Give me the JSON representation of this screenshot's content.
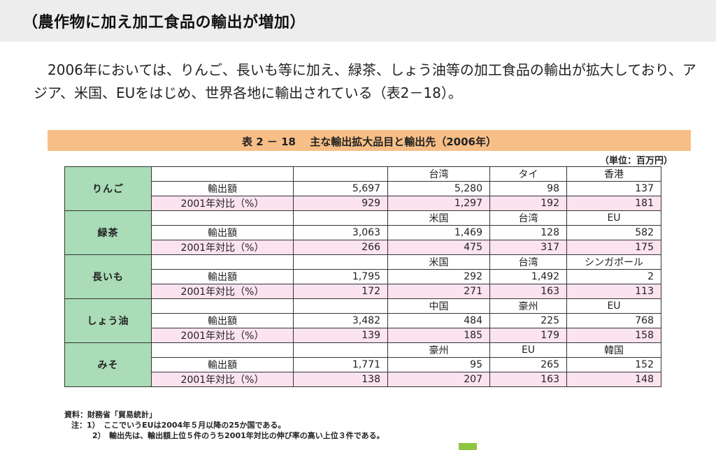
{
  "heading": "（農作物に加え加工食品の輸出が増加）",
  "paragraph": "2006年においては、りんご、長いも等に加え、緑茶、しょう油等の加工食品の輸出が拡大しており、アジア、米国、EUをはじめ、世界各地に輸出されている（表2－18）。",
  "table": {
    "title": "表 2 － 18　 主な輸出拡大品目と輸出先（2006年）",
    "unit": "（単位：百万円）",
    "metric_labels": {
      "amount": "輸出額",
      "ratio": "2001年対比（%）"
    },
    "products": [
      {
        "name": "りんご",
        "destinations": [
          "台湾",
          "タイ",
          "香港"
        ],
        "amount": [
          "5,697",
          "5,280",
          "98",
          "137"
        ],
        "ratio": [
          "929",
          "1,297",
          "192",
          "181"
        ]
      },
      {
        "name": "緑茶",
        "destinations": [
          "米国",
          "台湾",
          "EU"
        ],
        "amount": [
          "3,063",
          "1,469",
          "128",
          "582"
        ],
        "ratio": [
          "266",
          "475",
          "317",
          "175"
        ]
      },
      {
        "name": "長いも",
        "destinations": [
          "米国",
          "台湾",
          "シンガポール"
        ],
        "amount": [
          "1,795",
          "292",
          "1,492",
          "2"
        ],
        "ratio": [
          "172",
          "271",
          "163",
          "113"
        ]
      },
      {
        "name": "しょう油",
        "destinations": [
          "中国",
          "豪州",
          "EU"
        ],
        "amount": [
          "3,482",
          "484",
          "225",
          "768"
        ],
        "ratio": [
          "139",
          "185",
          "179",
          "158"
        ]
      },
      {
        "name": "みそ",
        "destinations": [
          "豪州",
          "EU",
          "韓国"
        ],
        "amount": [
          "1,771",
          "95",
          "265",
          "152"
        ],
        "ratio": [
          "138",
          "207",
          "163",
          "148"
        ]
      }
    ]
  },
  "notes": {
    "source": "資料：財務省「貿易統計」",
    "note1": "注：1）　ここでいうEUは2004年５月以降の25か国である。",
    "note2": "2）　輸出先は、輸出額上位５件のうち2001年対比の伸び率の高い上位３件である。"
  }
}
